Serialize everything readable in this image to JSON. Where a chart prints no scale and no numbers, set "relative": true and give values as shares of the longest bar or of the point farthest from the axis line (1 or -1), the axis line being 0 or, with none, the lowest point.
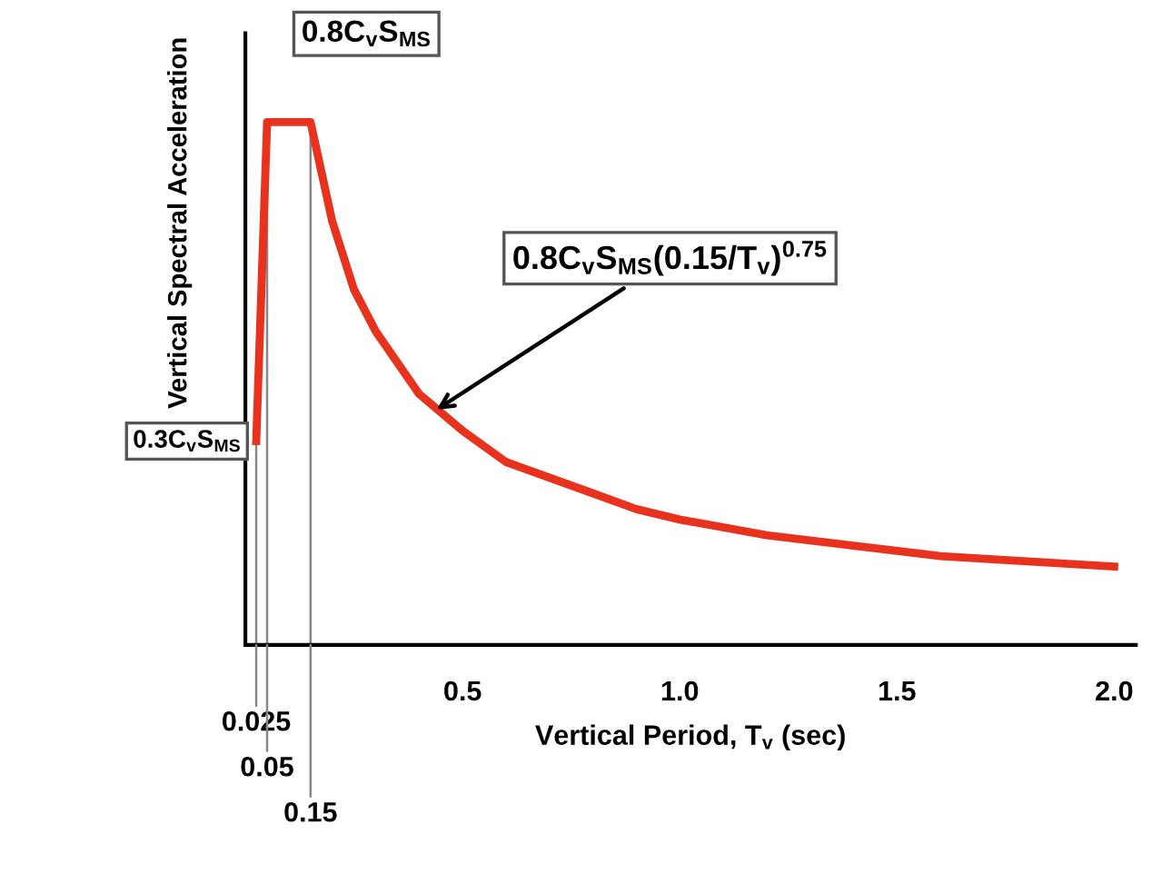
{
  "chart_data": {
    "type": "line",
    "relative": true,
    "xlabel": "Vertical Period, T$_{v}$ (sec)",
    "ylabel": "Vertical Spectral Acceleration",
    "x": [
      0.025,
      0.05,
      0.15,
      0.2,
      0.25,
      0.3,
      0.4,
      0.5,
      0.6,
      0.7,
      0.8,
      0.9,
      1.0,
      1.2,
      1.4,
      1.6,
      1.8,
      2.0
    ],
    "series": [
      {
        "color": "#e8321e",
        "values": [
          0.39,
          1.0,
          1.0,
          0.81,
          0.68,
          0.6,
          0.48,
          0.41,
          0.35,
          0.32,
          0.29,
          0.26,
          0.24,
          0.21,
          0.19,
          0.17,
          0.16,
          0.15
        ]
      }
    ],
    "xlim": [
      0,
      2.05
    ],
    "xticks": [
      0.5,
      {
        "value": 1.0,
        "label": "1.0"
      },
      1.5,
      {
        "value": 2.0,
        "label": "2.0"
      }
    ],
    "ref_lines": [
      {
        "axis": "x",
        "value": 0.025,
        "label": null,
        "color": "#888888"
      },
      {
        "axis": "x",
        "value": 0.05,
        "label": null,
        "color": "#888888"
      },
      {
        "axis": "x",
        "value": 0.15,
        "label": null,
        "color": "#888888"
      }
    ],
    "annotations": [
      {
        "text": "0.8C$_{v}$S$_{MS}$",
        "x": 0.1,
        "y": 1.0
      },
      {
        "text": "0.8C$_{v}$S$_{MS}$(0.15/T$_{v}$)$^{0.75}$",
        "x": 0.44,
        "y": 0.45
      },
      {
        "text": "0.3C$_{v}$S$_{MS}$",
        "x": 0.025,
        "y": 0.39
      },
      {
        "text": "0.025",
        "x": 0.025,
        "y": 0
      },
      {
        "text": "0.05",
        "x": 0.05,
        "y": 0
      },
      {
        "text": "0.15",
        "x": 0.15,
        "y": 0
      }
    ],
    "grid": false,
    "legend": false,
    "marker": "none",
    "line_style": "solid"
  }
}
